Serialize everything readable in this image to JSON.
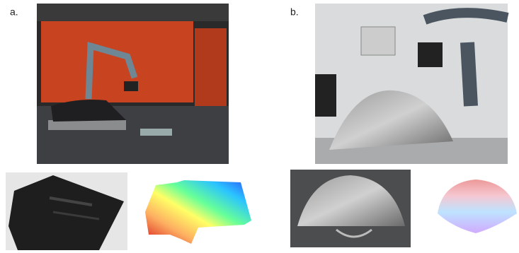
{
  "panels": [
    {
      "label": "a."
    },
    {
      "label": "b."
    }
  ]
}
